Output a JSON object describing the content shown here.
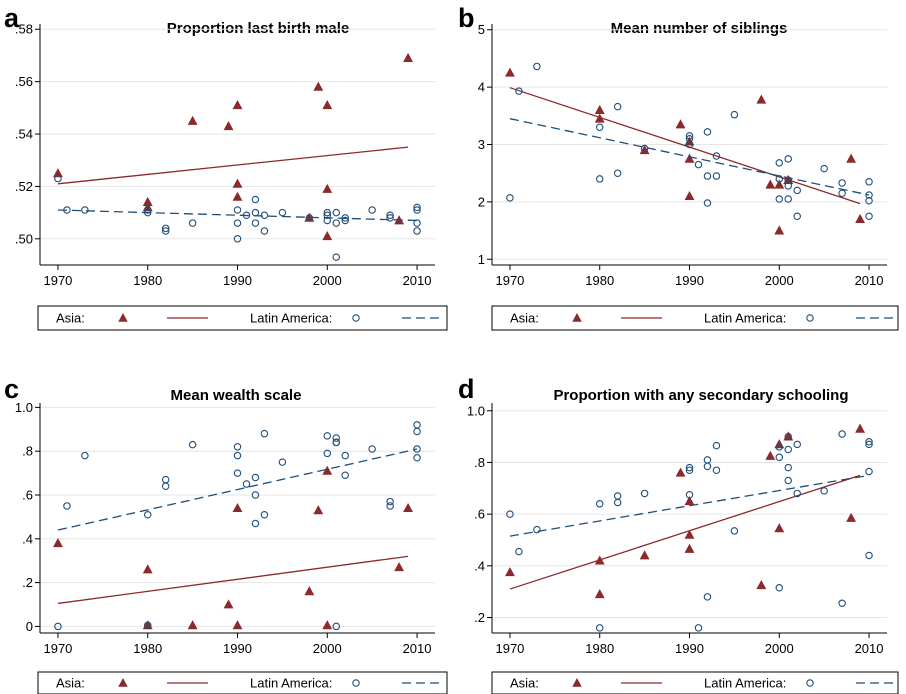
{
  "styles": {
    "asia_color": "#8b2a2a",
    "latam_color": "#1f4e79",
    "axis_color": "#000000"
  },
  "legend": {
    "asia_label": "Asia:",
    "latam_label": "Latin America:"
  },
  "chart_data": [
    {
      "type": "scatter",
      "panel_letter": "a",
      "title": "Proportion last birth male",
      "x_ticks": [
        "1970",
        "1980",
        "1990",
        "2000",
        "2010"
      ],
      "y_ticks": [
        ".50",
        ".52",
        ".54",
        ".56",
        ".58"
      ],
      "xlim": [
        1968,
        2012
      ],
      "ylim": [
        0.49,
        0.582
      ],
      "grid": true,
      "series": [
        {
          "name": "Asia:",
          "marker": "triangle",
          "points": [
            [
              1970,
              0.525
            ],
            [
              1980,
              0.514
            ],
            [
              1980,
              0.512
            ],
            [
              1985,
              0.545
            ],
            [
              1989,
              0.543
            ],
            [
              1990,
              0.551
            ],
            [
              1990,
              0.521
            ],
            [
              1990,
              0.516
            ],
            [
              1998,
              0.508
            ],
            [
              1999,
              0.558
            ],
            [
              2000,
              0.551
            ],
            [
              2000,
              0.519
            ],
            [
              2000,
              0.501
            ],
            [
              2008,
              0.507
            ],
            [
              2009,
              0.569
            ]
          ],
          "fit": [
            [
              1970,
              0.521
            ],
            [
              2009,
              0.535
            ]
          ]
        },
        {
          "name": "Latin America:",
          "marker": "circle",
          "points": [
            [
              1970,
              0.523
            ],
            [
              1971,
              0.511
            ],
            [
              1973,
              0.511
            ],
            [
              1980,
              0.51
            ],
            [
              1980,
              0.511
            ],
            [
              1982,
              0.504
            ],
            [
              1982,
              0.503
            ],
            [
              1985,
              0.506
            ],
            [
              1990,
              0.511
            ],
            [
              1990,
              0.506
            ],
            [
              1990,
              0.5
            ],
            [
              1991,
              0.509
            ],
            [
              1992,
              0.515
            ],
            [
              1992,
              0.506
            ],
            [
              1992,
              0.51
            ],
            [
              1993,
              0.509
            ],
            [
              1993,
              0.503
            ],
            [
              1995,
              0.51
            ],
            [
              1998,
              0.508
            ],
            [
              2000,
              0.509
            ],
            [
              2000,
              0.51
            ],
            [
              2000,
              0.507
            ],
            [
              2001,
              0.51
            ],
            [
              2001,
              0.506
            ],
            [
              2001,
              0.493
            ],
            [
              2002,
              0.508
            ],
            [
              2002,
              0.507
            ],
            [
              2005,
              0.511
            ],
            [
              2007,
              0.509
            ],
            [
              2007,
              0.508
            ],
            [
              2010,
              0.512
            ],
            [
              2010,
              0.511
            ],
            [
              2010,
              0.506
            ],
            [
              2010,
              0.503
            ]
          ],
          "fit": [
            [
              1970,
              0.511
            ],
            [
              2010,
              0.507
            ]
          ]
        }
      ]
    },
    {
      "type": "scatter",
      "panel_letter": "b",
      "title": "Mean number of siblings",
      "x_ticks": [
        "1970",
        "1980",
        "1990",
        "2000",
        "2010"
      ],
      "y_ticks": [
        "1",
        "2",
        "3",
        "4",
        "5"
      ],
      "xlim": [
        1968,
        2012
      ],
      "ylim": [
        0.9,
        5.1
      ],
      "grid": true,
      "series": [
        {
          "name": "Asia:",
          "marker": "triangle",
          "points": [
            [
              1970,
              4.25
            ],
            [
              1980,
              3.6
            ],
            [
              1980,
              3.45
            ],
            [
              1985,
              2.9
            ],
            [
              1989,
              3.35
            ],
            [
              1990,
              3.05
            ],
            [
              1990,
              2.75
            ],
            [
              1990,
              2.1
            ],
            [
              1998,
              3.78
            ],
            [
              1999,
              2.3
            ],
            [
              2000,
              2.3
            ],
            [
              2000,
              1.5
            ],
            [
              2001,
              2.38
            ],
            [
              2008,
              2.75
            ],
            [
              2009,
              1.7
            ]
          ],
          "fit": [
            [
              1970,
              3.99
            ],
            [
              2009,
              1.97
            ]
          ]
        },
        {
          "name": "Latin America:",
          "marker": "circle",
          "points": [
            [
              1970,
              2.07
            ],
            [
              1971,
              3.93
            ],
            [
              1973,
              4.36
            ],
            [
              1980,
              3.3
            ],
            [
              1980,
              2.4
            ],
            [
              1982,
              3.66
            ],
            [
              1982,
              2.5
            ],
            [
              1985,
              2.93
            ],
            [
              1990,
              3.15
            ],
            [
              1990,
              3.1
            ],
            [
              1990,
              3.0
            ],
            [
              1991,
              2.65
            ],
            [
              1992,
              3.22
            ],
            [
              1992,
              2.45
            ],
            [
              1992,
              1.98
            ],
            [
              1993,
              2.8
            ],
            [
              1993,
              2.45
            ],
            [
              1995,
              3.52
            ],
            [
              2000,
              2.68
            ],
            [
              2000,
              2.4
            ],
            [
              2000,
              2.05
            ],
            [
              2001,
              2.75
            ],
            [
              2001,
              2.38
            ],
            [
              2001,
              2.28
            ],
            [
              2001,
              2.05
            ],
            [
              2002,
              2.2
            ],
            [
              2002,
              1.75
            ],
            [
              2005,
              2.58
            ],
            [
              2007,
              2.33
            ],
            [
              2007,
              2.15
            ],
            [
              2010,
              2.35
            ],
            [
              2010,
              2.12
            ],
            [
              2010,
              2.02
            ],
            [
              2010,
              1.75
            ]
          ],
          "fit": [
            [
              1970,
              3.45
            ],
            [
              2010,
              2.12
            ]
          ]
        }
      ]
    },
    {
      "type": "scatter",
      "panel_letter": "c",
      "title": "Mean wealth scale",
      "x_ticks": [
        "1970",
        "1980",
        "1990",
        "2000",
        "2010"
      ],
      "y_ticks": [
        "0",
        ".2",
        ".4",
        ".6",
        ".8",
        "1.0"
      ],
      "xlim": [
        1968,
        2012
      ],
      "ylim": [
        -0.03,
        1.02
      ],
      "grid": true,
      "series": [
        {
          "name": "Asia:",
          "marker": "triangle",
          "points": [
            [
              1970,
              0.38
            ],
            [
              1980,
              0.26
            ],
            [
              1980,
              0.005
            ],
            [
              1985,
              0.005
            ],
            [
              1989,
              0.1
            ],
            [
              1990,
              0.54
            ],
            [
              1990,
              0.005
            ],
            [
              1998,
              0.16
            ],
            [
              1999,
              0.53
            ],
            [
              2000,
              0.71
            ],
            [
              2000,
              0.005
            ],
            [
              2008,
              0.27
            ],
            [
              2009,
              0.54
            ]
          ],
          "fit": [
            [
              1970,
              0.105
            ],
            [
              2009,
              0.32
            ]
          ]
        },
        {
          "name": "Latin America:",
          "marker": "circle",
          "points": [
            [
              1970,
              0.0
            ],
            [
              1971,
              0.55
            ],
            [
              1973,
              0.78
            ],
            [
              1980,
              0.51
            ],
            [
              1980,
              0.005
            ],
            [
              1982,
              0.67
            ],
            [
              1982,
              0.64
            ],
            [
              1985,
              0.83
            ],
            [
              1990,
              0.82
            ],
            [
              1990,
              0.78
            ],
            [
              1990,
              0.7
            ],
            [
              1991,
              0.65
            ],
            [
              1992,
              0.68
            ],
            [
              1992,
              0.6
            ],
            [
              1992,
              0.47
            ],
            [
              1993,
              0.88
            ],
            [
              1993,
              0.51
            ],
            [
              1995,
              0.75
            ],
            [
              2000,
              0.87
            ],
            [
              2000,
              0.79
            ],
            [
              2001,
              0.86
            ],
            [
              2001,
              0.84
            ],
            [
              2001,
              0.84
            ],
            [
              2001,
              0.0
            ],
            [
              2002,
              0.78
            ],
            [
              2002,
              0.69
            ],
            [
              2005,
              0.81
            ],
            [
              2007,
              0.57
            ],
            [
              2007,
              0.55
            ],
            [
              2010,
              0.92
            ],
            [
              2010,
              0.89
            ],
            [
              2010,
              0.81
            ],
            [
              2010,
              0.77
            ]
          ],
          "fit": [
            [
              1970,
              0.44
            ],
            [
              2010,
              0.81
            ]
          ]
        }
      ]
    },
    {
      "type": "scatter",
      "panel_letter": "d",
      "title": "Proportion with any secondary schooling",
      "x_ticks": [
        "1970",
        "1980",
        "1990",
        "2000",
        "2010"
      ],
      "y_ticks": [
        ".2",
        ".4",
        ".6",
        ".8",
        "1.0"
      ],
      "xlim": [
        1968,
        2012
      ],
      "ylim": [
        0.14,
        1.03
      ],
      "grid": true,
      "series": [
        {
          "name": "Asia:",
          "marker": "triangle",
          "points": [
            [
              1970,
              0.375
            ],
            [
              1980,
              0.42
            ],
            [
              1980,
              0.29
            ],
            [
              1985,
              0.44
            ],
            [
              1989,
              0.76
            ],
            [
              1990,
              0.65
            ],
            [
              1990,
              0.52
            ],
            [
              1990,
              0.465
            ],
            [
              1998,
              0.325
            ],
            [
              1999,
              0.825
            ],
            [
              2000,
              0.87
            ],
            [
              2000,
              0.545
            ],
            [
              2001,
              0.9
            ],
            [
              2008,
              0.585
            ],
            [
              2009,
              0.93
            ]
          ],
          "fit": [
            [
              1970,
              0.31
            ],
            [
              2009,
              0.75
            ]
          ]
        },
        {
          "name": "Latin America:",
          "marker": "circle",
          "points": [
            [
              1970,
              0.6
            ],
            [
              1971,
              0.455
            ],
            [
              1973,
              0.54
            ],
            [
              1980,
              0.64
            ],
            [
              1980,
              0.16
            ],
            [
              1982,
              0.67
            ],
            [
              1982,
              0.645
            ],
            [
              1985,
              0.68
            ],
            [
              1990,
              0.78
            ],
            [
              1990,
              0.77
            ],
            [
              1990,
              0.675
            ],
            [
              1991,
              0.16
            ],
            [
              1992,
              0.81
            ],
            [
              1992,
              0.785
            ],
            [
              1992,
              0.28
            ],
            [
              1993,
              0.865
            ],
            [
              1993,
              0.77
            ],
            [
              1995,
              0.535
            ],
            [
              2000,
              0.86
            ],
            [
              2000,
              0.82
            ],
            [
              2000,
              0.315
            ],
            [
              2001,
              0.9
            ],
            [
              2001,
              0.85
            ],
            [
              2001,
              0.78
            ],
            [
              2001,
              0.73
            ],
            [
              2002,
              0.87
            ],
            [
              2002,
              0.68
            ],
            [
              2005,
              0.69
            ],
            [
              2007,
              0.91
            ],
            [
              2007,
              0.255
            ],
            [
              2010,
              0.88
            ],
            [
              2010,
              0.87
            ],
            [
              2010,
              0.765
            ],
            [
              2010,
              0.44
            ]
          ],
          "fit": [
            [
              1970,
              0.515
            ],
            [
              2010,
              0.75
            ]
          ]
        }
      ]
    }
  ]
}
